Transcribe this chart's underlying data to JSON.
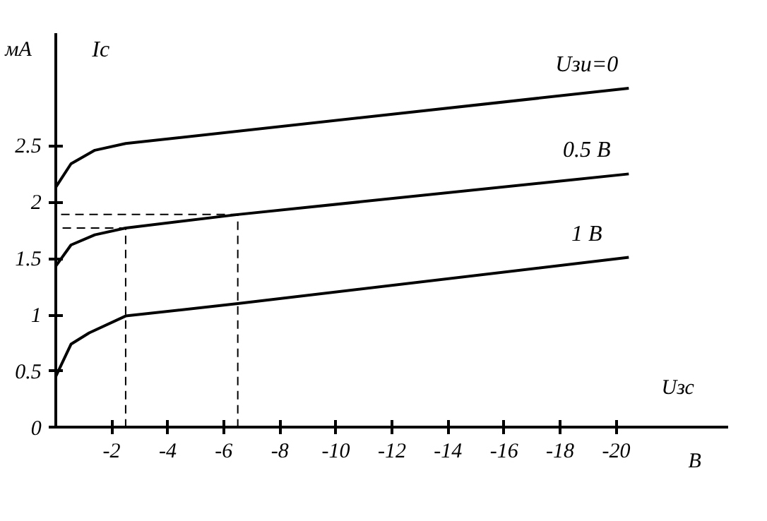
{
  "chart_data": {
    "type": "line",
    "xlabel": "Uзс",
    "ylabel": "Ic",
    "annotations": [
      "мА",
      "В"
    ],
    "xlim": [
      0,
      -24
    ],
    "ylim": [
      0,
      3.5
    ],
    "xticks": [
      -2,
      -4,
      -6,
      -8,
      -10,
      -12,
      -14,
      -16,
      -18,
      -20
    ],
    "yticks": [
      0,
      0.5,
      1,
      1.5,
      2,
      2.5
    ],
    "grid": false,
    "marker": "none",
    "line_style": "solid",
    "series": [
      {
        "name": "Uзи=0",
        "color": "#000000",
        "x": [
          0,
          -0.55,
          -1.4,
          -2.5,
          -20.45
        ],
        "values": [
          2.13,
          2.34,
          2.46,
          2.52,
          3.01
        ]
      },
      {
        "name": "0.5 В",
        "color": "#000000",
        "x": [
          0,
          -0.55,
          -1.4,
          -2.5,
          -6.5,
          -20.45
        ],
        "values": [
          1.43,
          1.62,
          1.71,
          1.77,
          1.89,
          2.25
        ]
      },
      {
        "name": "1 В",
        "color": "#000000",
        "x": [
          0,
          -0.55,
          -1.2,
          -2.5,
          -6.5,
          -20.45
        ],
        "values": [
          0.45,
          0.74,
          0.84,
          0.99,
          1.1,
          1.51
        ]
      },
      {
        "color": "#000000",
        "line_style": "dashed",
        "x": [
          -2.5,
          -2.5,
          0
        ],
        "values": [
          0,
          1.77,
          1.77
        ]
      },
      {
        "color": "#000000",
        "line_style": "dashed",
        "x": [
          -6.5,
          -6.5,
          0
        ],
        "values": [
          0,
          1.89,
          1.89
        ]
      }
    ]
  }
}
